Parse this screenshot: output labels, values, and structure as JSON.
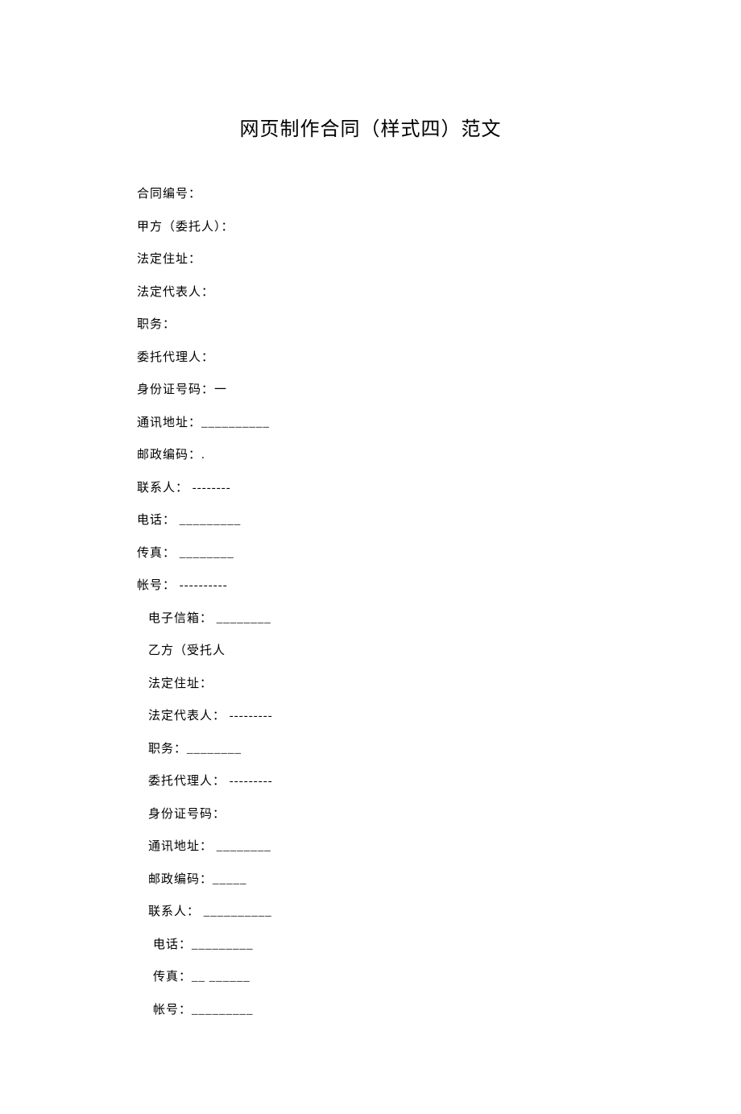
{
  "document": {
    "title": "网页制作合同（样式四）范文",
    "title_fontsize": 24,
    "body_fontsize": 15,
    "text_color": "#000000",
    "background_color": "#ffffff",
    "line_spacing": 18,
    "fields": [
      {
        "text": "合同编号：",
        "indent": 0
      },
      {
        "text": "甲方（委托人）：",
        "indent": 0
      },
      {
        "text": "法定住址：",
        "indent": 0
      },
      {
        "text": "法定代表人：",
        "indent": 0
      },
      {
        "text": "职务：",
        "indent": 0
      },
      {
        "text": "委托代理人：",
        "indent": 0
      },
      {
        "text": "身份证号码：一",
        "indent": 0
      },
      {
        "text": "通讯地址：__________",
        "indent": 0
      },
      {
        "text": "邮政编码：.",
        "indent": 0
      },
      {
        "text": "联系人： --------",
        "indent": 0
      },
      {
        "text": "电话： _________",
        "indent": 0
      },
      {
        "text": "传真： ________",
        "indent": 0
      },
      {
        "text": "帐号： ----------",
        "indent": 0
      },
      {
        "text": "电子信箱： ________",
        "indent": 1
      },
      {
        "text": "乙方（受托人",
        "indent": 1
      },
      {
        "text": "法定住址：",
        "indent": 1
      },
      {
        "text": "法定代表人：  ---------",
        "indent": 1
      },
      {
        "text": "职务：________",
        "indent": 1
      },
      {
        "text": "委托代理人：  ---------",
        "indent": 1
      },
      {
        "text": "身份证号码：",
        "indent": 1
      },
      {
        "text": "通讯地址： ________",
        "indent": 1
      },
      {
        "text": "邮政编码：_____",
        "indent": 1
      },
      {
        "text": "联系人： __________",
        "indent": 1
      },
      {
        "text": "电话：_________",
        "indent": 2
      },
      {
        "text": "传真：__  ______",
        "indent": 2
      },
      {
        "text": "帐号：_________",
        "indent": 2
      }
    ]
  }
}
